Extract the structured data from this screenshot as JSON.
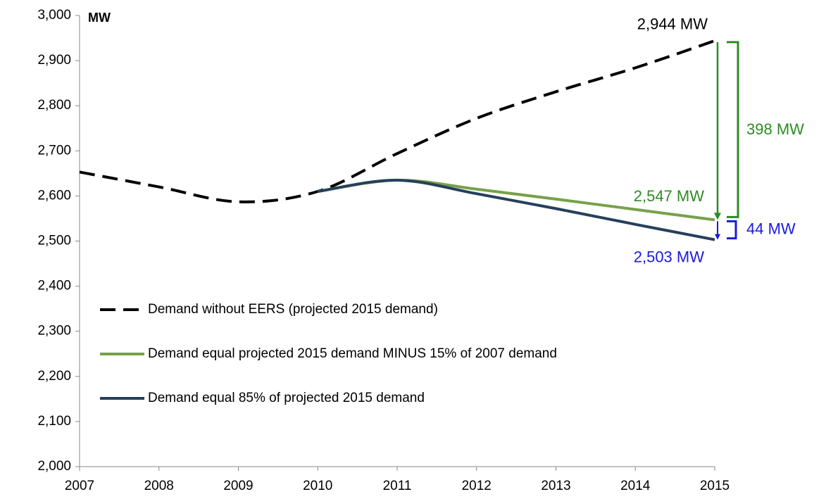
{
  "chart_data": {
    "type": "line",
    "y_axis_label": "MW",
    "x": [
      2007,
      2008,
      2009,
      2010,
      2011,
      2012,
      2013,
      2014,
      2015
    ],
    "xlim": [
      2007,
      2015
    ],
    "xticks": [
      2007,
      2008,
      2009,
      2010,
      2011,
      2012,
      2013,
      2014,
      2015
    ],
    "ylim": [
      2000,
      3000
    ],
    "yticks": [
      {
        "value": 2000,
        "label": "2,000"
      },
      {
        "value": 2100,
        "label": "2,100"
      },
      {
        "value": 2200,
        "label": "2,200"
      },
      {
        "value": 2300,
        "label": "2,300"
      },
      {
        "value": 2400,
        "label": "2,400"
      },
      {
        "value": 2500,
        "label": "2,500"
      },
      {
        "value": 2600,
        "label": "2,600"
      },
      {
        "value": 2700,
        "label": "2,700"
      },
      {
        "value": 2800,
        "label": "2,800"
      },
      {
        "value": 2900,
        "label": "2,900"
      },
      {
        "value": 3000,
        "label": "3,000"
      }
    ],
    "grid": false,
    "legend": "lower left",
    "series": [
      {
        "name": "Demand without EERS (projected 2015 demand)",
        "color": "#000000",
        "dashed": true,
        "values": [
          2653,
          2620,
          2587,
          2610,
          2694,
          2772,
          2831,
          2884,
          2944
        ]
      },
      {
        "name": "Demand equal projected 2015 demand MINUS 15% of 2007 demand",
        "color": "#77a14a",
        "dashed": false,
        "values": [
          null,
          null,
          null,
          2610,
          2635,
          2615,
          2593,
          2570,
          2547
        ]
      },
      {
        "name": "Demand equal 85% of projected 2015 demand",
        "color": "#26405c",
        "dashed": false,
        "values": [
          null,
          null,
          null,
          2610,
          2635,
          2605,
          2572,
          2537,
          2503
        ]
      }
    ],
    "annotations": [
      {
        "text": "2,944 MW",
        "color": "#000000"
      },
      {
        "text": "2,547 MW",
        "color": "#2e8b22"
      },
      {
        "text": "2,503 MW",
        "color": "#1a1adc"
      },
      {
        "text": "398 MW",
        "color": "#2e8b22"
      },
      {
        "text": "44 MW",
        "color": "#1a1adc"
      }
    ]
  }
}
